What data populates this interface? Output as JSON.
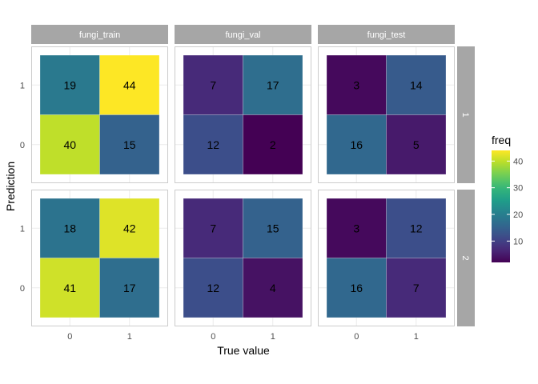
{
  "chart_data": {
    "type": "heatmap",
    "title": "",
    "xlabel": "True value",
    "ylabel": "Prediction",
    "x_categories": [
      "0",
      "1"
    ],
    "y_categories": [
      "0",
      "1"
    ],
    "column_facets": [
      "fungi_train",
      "fungi_val",
      "fungi_test"
    ],
    "row_facets": [
      "1",
      "2"
    ],
    "panels": [
      {
        "col": "fungi_train",
        "row": "1",
        "cells": [
          {
            "x": "0",
            "y": "1",
            "freq": 19
          },
          {
            "x": "1",
            "y": "1",
            "freq": 44
          },
          {
            "x": "0",
            "y": "0",
            "freq": 40
          },
          {
            "x": "1",
            "y": "0",
            "freq": 15
          }
        ]
      },
      {
        "col": "fungi_val",
        "row": "1",
        "cells": [
          {
            "x": "0",
            "y": "1",
            "freq": 7
          },
          {
            "x": "1",
            "y": "1",
            "freq": 17
          },
          {
            "x": "0",
            "y": "0",
            "freq": 12
          },
          {
            "x": "1",
            "y": "0",
            "freq": 2
          }
        ]
      },
      {
        "col": "fungi_test",
        "row": "1",
        "cells": [
          {
            "x": "0",
            "y": "1",
            "freq": 3
          },
          {
            "x": "1",
            "y": "1",
            "freq": 14
          },
          {
            "x": "0",
            "y": "0",
            "freq": 16
          },
          {
            "x": "1",
            "y": "0",
            "freq": 5
          }
        ]
      },
      {
        "col": "fungi_train",
        "row": "2",
        "cells": [
          {
            "x": "0",
            "y": "1",
            "freq": 18
          },
          {
            "x": "1",
            "y": "1",
            "freq": 42
          },
          {
            "x": "0",
            "y": "0",
            "freq": 41
          },
          {
            "x": "1",
            "y": "0",
            "freq": 17
          }
        ]
      },
      {
        "col": "fungi_val",
        "row": "2",
        "cells": [
          {
            "x": "0",
            "y": "1",
            "freq": 7
          },
          {
            "x": "1",
            "y": "1",
            "freq": 15
          },
          {
            "x": "0",
            "y": "0",
            "freq": 12
          },
          {
            "x": "1",
            "y": "0",
            "freq": 4
          }
        ]
      },
      {
        "col": "fungi_test",
        "row": "2",
        "cells": [
          {
            "x": "0",
            "y": "1",
            "freq": 3
          },
          {
            "x": "1",
            "y": "1",
            "freq": 12
          },
          {
            "x": "0",
            "y": "0",
            "freq": 16
          },
          {
            "x": "1",
            "y": "0",
            "freq": 7
          }
        ]
      }
    ],
    "legend": {
      "title": "freq",
      "position": "right",
      "range": [
        2,
        44
      ],
      "ticks": [
        10,
        20,
        30,
        40
      ],
      "palette": "viridis"
    },
    "colors": {
      "strip_background": "#a6a6a6",
      "panel_border": "#cccccc",
      "grid": "#ebebeb"
    }
  }
}
